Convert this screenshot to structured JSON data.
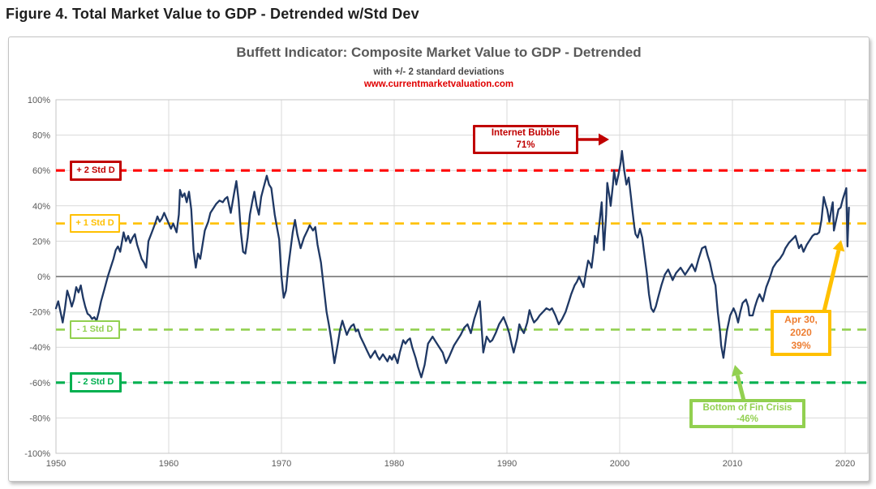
{
  "figure_title": "Figure 4. Total Market Value to GDP - Detrended w/Std Dev",
  "chart_data": {
    "type": "line",
    "title": "Buffett Indicator: Composite Market Value to GDP - Detrended",
    "subtitle": "with +/- 2 standard deviations",
    "watermark": "www.currentmarketvaluation.com",
    "watermark_color": "#e00000",
    "title_color": "#595959",
    "xlabel": "",
    "ylabel": "",
    "xlim": [
      1950,
      2022
    ],
    "ylim": [
      -100,
      100
    ],
    "grid": true,
    "zero_line": true,
    "x_ticks": [
      1950,
      1960,
      1970,
      1980,
      1990,
      2000,
      2010,
      2020
    ],
    "y_tick_values": [
      100,
      80,
      60,
      40,
      20,
      0,
      -20,
      -40,
      -60,
      -80,
      -100
    ],
    "y_tick_labels": [
      "100%",
      "80%",
      "60%",
      "40%",
      "20%",
      "0%",
      "-20%",
      "-40%",
      "-60%",
      "-80%",
      "-100%"
    ],
    "series_color": "#1f3864",
    "std_lines": [
      {
        "label": "+ 2 Std D",
        "value": 60,
        "line_color": "#ff0000",
        "box_color": "#c00000"
      },
      {
        "label": "+ 1 Std D",
        "value": 30,
        "line_color": "#ffc000",
        "box_color": "#ffc000"
      },
      {
        "label": "- 1 Std D",
        "value": -30,
        "line_color": "#92d050",
        "box_color": "#92d050"
      },
      {
        "label": "- 2 Std D",
        "value": -60,
        "line_color": "#00b050",
        "box_color": "#00b050"
      }
    ],
    "annotations": [
      {
        "id": "internet-bubble",
        "lines": [
          "Internet Bubble",
          "71%"
        ],
        "border": "#c00000",
        "text": "#c00000",
        "target": {
          "x": 2000.2,
          "y": 71
        }
      },
      {
        "id": "apr-30-2020",
        "lines": [
          "Apr 30,",
          "2020",
          "39%"
        ],
        "border": "#ffc000",
        "text": "#ed7d31",
        "target": {
          "x": 2020.33,
          "y": 39
        }
      },
      {
        "id": "bottom-of-fin-crisis",
        "lines": [
          "Bottom of Fin Crisis",
          "-46%"
        ],
        "border": "#92d050",
        "text": "#92d050",
        "target": {
          "x": 2009.2,
          "y": -46
        }
      }
    ],
    "series_points": [
      [
        1950.0,
        -18
      ],
      [
        1950.2,
        -14
      ],
      [
        1950.4,
        -20
      ],
      [
        1950.6,
        -26
      ],
      [
        1950.8,
        -18
      ],
      [
        1951.0,
        -8
      ],
      [
        1951.2,
        -12
      ],
      [
        1951.4,
        -17
      ],
      [
        1951.6,
        -13
      ],
      [
        1951.8,
        -6
      ],
      [
        1952.0,
        -9
      ],
      [
        1952.2,
        -5
      ],
      [
        1952.4,
        -12
      ],
      [
        1952.6,
        -17
      ],
      [
        1952.8,
        -21
      ],
      [
        1953.0,
        -22
      ],
      [
        1953.2,
        -24
      ],
      [
        1953.4,
        -23
      ],
      [
        1953.6,
        -25
      ],
      [
        1953.8,
        -20
      ],
      [
        1954.0,
        -14
      ],
      [
        1954.3,
        -7
      ],
      [
        1954.6,
        0
      ],
      [
        1954.9,
        6
      ],
      [
        1955.1,
        10
      ],
      [
        1955.3,
        15
      ],
      [
        1955.5,
        17
      ],
      [
        1955.7,
        14
      ],
      [
        1956.0,
        25
      ],
      [
        1956.2,
        20
      ],
      [
        1956.4,
        23
      ],
      [
        1956.6,
        19
      ],
      [
        1956.8,
        22
      ],
      [
        1957.0,
        24
      ],
      [
        1957.2,
        18
      ],
      [
        1957.4,
        14
      ],
      [
        1957.6,
        10
      ],
      [
        1957.8,
        8
      ],
      [
        1958.0,
        5
      ],
      [
        1958.2,
        20
      ],
      [
        1958.5,
        25
      ],
      [
        1958.8,
        30
      ],
      [
        1959.0,
        34
      ],
      [
        1959.2,
        31
      ],
      [
        1959.4,
        33
      ],
      [
        1959.6,
        36
      ],
      [
        1959.8,
        33
      ],
      [
        1960.0,
        30
      ],
      [
        1960.2,
        27
      ],
      [
        1960.4,
        30
      ],
      [
        1960.7,
        25
      ],
      [
        1960.9,
        35
      ],
      [
        1961.0,
        49
      ],
      [
        1961.2,
        45
      ],
      [
        1961.4,
        47
      ],
      [
        1961.6,
        42
      ],
      [
        1961.8,
        48
      ],
      [
        1962.0,
        38
      ],
      [
        1962.2,
        15
      ],
      [
        1962.4,
        5
      ],
      [
        1962.6,
        13
      ],
      [
        1962.8,
        10
      ],
      [
        1963.0,
        18
      ],
      [
        1963.2,
        26
      ],
      [
        1963.5,
        31
      ],
      [
        1963.7,
        36
      ],
      [
        1964.0,
        39
      ],
      [
        1964.2,
        41
      ],
      [
        1964.5,
        43
      ],
      [
        1964.8,
        42
      ],
      [
        1965.0,
        44
      ],
      [
        1965.2,
        45
      ],
      [
        1965.5,
        36
      ],
      [
        1965.8,
        47
      ],
      [
        1966.0,
        54
      ],
      [
        1966.2,
        43
      ],
      [
        1966.4,
        25
      ],
      [
        1966.6,
        14
      ],
      [
        1966.8,
        13
      ],
      [
        1967.0,
        22
      ],
      [
        1967.2,
        35
      ],
      [
        1967.4,
        42
      ],
      [
        1967.6,
        48
      ],
      [
        1967.8,
        40
      ],
      [
        1968.0,
        35
      ],
      [
        1968.2,
        45
      ],
      [
        1968.4,
        50
      ],
      [
        1968.7,
        57
      ],
      [
        1968.9,
        52
      ],
      [
        1969.1,
        50
      ],
      [
        1969.4,
        35
      ],
      [
        1969.6,
        28
      ],
      [
        1969.8,
        21
      ],
      [
        1970.0,
        0
      ],
      [
        1970.2,
        -12
      ],
      [
        1970.4,
        -8
      ],
      [
        1970.6,
        5
      ],
      [
        1970.8,
        15
      ],
      [
        1971.0,
        25
      ],
      [
        1971.2,
        32
      ],
      [
        1971.4,
        24
      ],
      [
        1971.7,
        16
      ],
      [
        1972.0,
        22
      ],
      [
        1972.3,
        26
      ],
      [
        1972.5,
        29
      ],
      [
        1972.8,
        26
      ],
      [
        1973.0,
        28
      ],
      [
        1973.2,
        18
      ],
      [
        1973.5,
        8
      ],
      [
        1973.7,
        -3
      ],
      [
        1974.0,
        -20
      ],
      [
        1974.2,
        -27
      ],
      [
        1974.4,
        -35
      ],
      [
        1974.7,
        -49
      ],
      [
        1975.0,
        -38
      ],
      [
        1975.2,
        -30
      ],
      [
        1975.4,
        -25
      ],
      [
        1975.6,
        -29
      ],
      [
        1975.8,
        -33
      ],
      [
        1976.0,
        -30
      ],
      [
        1976.2,
        -28
      ],
      [
        1976.4,
        -27
      ],
      [
        1976.6,
        -31
      ],
      [
        1976.8,
        -30
      ],
      [
        1977.0,
        -34
      ],
      [
        1977.3,
        -38
      ],
      [
        1977.6,
        -42
      ],
      [
        1977.9,
        -46
      ],
      [
        1978.1,
        -44
      ],
      [
        1978.3,
        -42
      ],
      [
        1978.5,
        -45
      ],
      [
        1978.7,
        -47
      ],
      [
        1979.0,
        -44
      ],
      [
        1979.2,
        -46
      ],
      [
        1979.4,
        -48
      ],
      [
        1979.6,
        -45
      ],
      [
        1979.8,
        -47
      ],
      [
        1980.0,
        -44
      ],
      [
        1980.3,
        -49
      ],
      [
        1980.5,
        -43
      ],
      [
        1980.8,
        -36
      ],
      [
        1981.0,
        -38
      ],
      [
        1981.2,
        -36
      ],
      [
        1981.4,
        -35
      ],
      [
        1981.6,
        -40
      ],
      [
        1981.9,
        -46
      ],
      [
        1982.1,
        -51
      ],
      [
        1982.4,
        -57
      ],
      [
        1982.7,
        -50
      ],
      [
        1983.0,
        -38
      ],
      [
        1983.4,
        -34
      ],
      [
        1983.7,
        -37
      ],
      [
        1984.0,
        -40
      ],
      [
        1984.3,
        -43
      ],
      [
        1984.6,
        -49
      ],
      [
        1984.9,
        -45
      ],
      [
        1985.3,
        -39
      ],
      [
        1985.6,
        -36
      ],
      [
        1985.9,
        -33
      ],
      [
        1986.2,
        -29
      ],
      [
        1986.5,
        -27
      ],
      [
        1986.8,
        -32
      ],
      [
        1987.1,
        -24
      ],
      [
        1987.4,
        -18
      ],
      [
        1987.6,
        -14
      ],
      [
        1987.9,
        -43
      ],
      [
        1988.2,
        -34
      ],
      [
        1988.5,
        -37
      ],
      [
        1988.7,
        -36
      ],
      [
        1989.0,
        -32
      ],
      [
        1989.3,
        -27
      ],
      [
        1989.7,
        -23
      ],
      [
        1990.0,
        -28
      ],
      [
        1990.2,
        -32
      ],
      [
        1990.4,
        -38
      ],
      [
        1990.6,
        -43
      ],
      [
        1990.9,
        -35
      ],
      [
        1991.1,
        -27
      ],
      [
        1991.3,
        -30
      ],
      [
        1991.5,
        -32
      ],
      [
        1991.8,
        -26
      ],
      [
        1992.0,
        -19
      ],
      [
        1992.2,
        -23
      ],
      [
        1992.4,
        -26
      ],
      [
        1992.7,
        -24
      ],
      [
        1992.9,
        -22
      ],
      [
        1993.2,
        -20
      ],
      [
        1993.5,
        -18
      ],
      [
        1993.8,
        -19
      ],
      [
        1994.0,
        -18
      ],
      [
        1994.3,
        -22
      ],
      [
        1994.6,
        -27
      ],
      [
        1994.9,
        -24
      ],
      [
        1995.2,
        -20
      ],
      [
        1995.5,
        -14
      ],
      [
        1995.7,
        -10
      ],
      [
        1996.0,
        -5
      ],
      [
        1996.2,
        -3
      ],
      [
        1996.4,
        0
      ],
      [
        1996.6,
        -3
      ],
      [
        1996.8,
        -6
      ],
      [
        1997.0,
        2
      ],
      [
        1997.2,
        9
      ],
      [
        1997.4,
        7
      ],
      [
        1997.5,
        5
      ],
      [
        1997.7,
        15
      ],
      [
        1997.8,
        23
      ],
      [
        1998.0,
        19
      ],
      [
        1998.2,
        30
      ],
      [
        1998.4,
        42
      ],
      [
        1998.6,
        15
      ],
      [
        1998.8,
        35
      ],
      [
        1998.9,
        53
      ],
      [
        1999.1,
        45
      ],
      [
        1999.2,
        40
      ],
      [
        1999.4,
        52
      ],
      [
        1999.5,
        60
      ],
      [
        1999.7,
        52
      ],
      [
        1999.9,
        58
      ],
      [
        2000.1,
        65
      ],
      [
        2000.2,
        71
      ],
      [
        2000.4,
        60
      ],
      [
        2000.6,
        52
      ],
      [
        2000.8,
        56
      ],
      [
        2001.0,
        45
      ],
      [
        2001.1,
        39
      ],
      [
        2001.3,
        28
      ],
      [
        2001.4,
        24
      ],
      [
        2001.6,
        22
      ],
      [
        2001.8,
        27
      ],
      [
        2002.0,
        22
      ],
      [
        2002.2,
        12
      ],
      [
        2002.4,
        2
      ],
      [
        2002.6,
        -10
      ],
      [
        2002.8,
        -18
      ],
      [
        2003.0,
        -20
      ],
      [
        2003.2,
        -17
      ],
      [
        2003.4,
        -12
      ],
      [
        2003.7,
        -5
      ],
      [
        2004.0,
        1
      ],
      [
        2004.3,
        4
      ],
      [
        2004.7,
        -2
      ],
      [
        2005.0,
        2
      ],
      [
        2005.4,
        5
      ],
      [
        2005.8,
        1
      ],
      [
        2006.0,
        3
      ],
      [
        2006.4,
        7
      ],
      [
        2006.7,
        3
      ],
      [
        2007.0,
        10
      ],
      [
        2007.3,
        16
      ],
      [
        2007.6,
        17
      ],
      [
        2007.8,
        12
      ],
      [
        2008.0,
        8
      ],
      [
        2008.3,
        -1
      ],
      [
        2008.5,
        -5
      ],
      [
        2008.7,
        -20
      ],
      [
        2008.9,
        -31
      ],
      [
        2009.0,
        -39
      ],
      [
        2009.2,
        -46
      ],
      [
        2009.4,
        -36
      ],
      [
        2009.5,
        -31
      ],
      [
        2009.8,
        -22
      ],
      [
        2010.1,
        -18
      ],
      [
        2010.3,
        -21
      ],
      [
        2010.5,
        -26
      ],
      [
        2010.7,
        -20
      ],
      [
        2010.9,
        -15
      ],
      [
        2011.2,
        -13
      ],
      [
        2011.4,
        -17
      ],
      [
        2011.5,
        -22
      ],
      [
        2011.8,
        -22
      ],
      [
        2012.0,
        -17
      ],
      [
        2012.2,
        -13
      ],
      [
        2012.4,
        -10
      ],
      [
        2012.7,
        -14
      ],
      [
        2013.0,
        -6
      ],
      [
        2013.3,
        -1
      ],
      [
        2013.6,
        5
      ],
      [
        2013.9,
        8
      ],
      [
        2014.2,
        10
      ],
      [
        2014.5,
        13
      ],
      [
        2014.7,
        16
      ],
      [
        2015.0,
        19
      ],
      [
        2015.3,
        21
      ],
      [
        2015.6,
        23
      ],
      [
        2015.9,
        16
      ],
      [
        2016.1,
        18
      ],
      [
        2016.3,
        14
      ],
      [
        2016.6,
        18
      ],
      [
        2016.9,
        21
      ],
      [
        2017.1,
        23
      ],
      [
        2017.3,
        24
      ],
      [
        2017.5,
        24
      ],
      [
        2017.7,
        25
      ],
      [
        2017.9,
        32
      ],
      [
        2018.1,
        45
      ],
      [
        2018.3,
        40
      ],
      [
        2018.4,
        38
      ],
      [
        2018.6,
        31
      ],
      [
        2018.8,
        39
      ],
      [
        2018.9,
        42
      ],
      [
        2019.0,
        26
      ],
      [
        2019.2,
        32
      ],
      [
        2019.4,
        38
      ],
      [
        2019.6,
        39
      ],
      [
        2019.8,
        44
      ],
      [
        2020.1,
        50
      ],
      [
        2020.2,
        17
      ],
      [
        2020.33,
        39
      ]
    ]
  }
}
